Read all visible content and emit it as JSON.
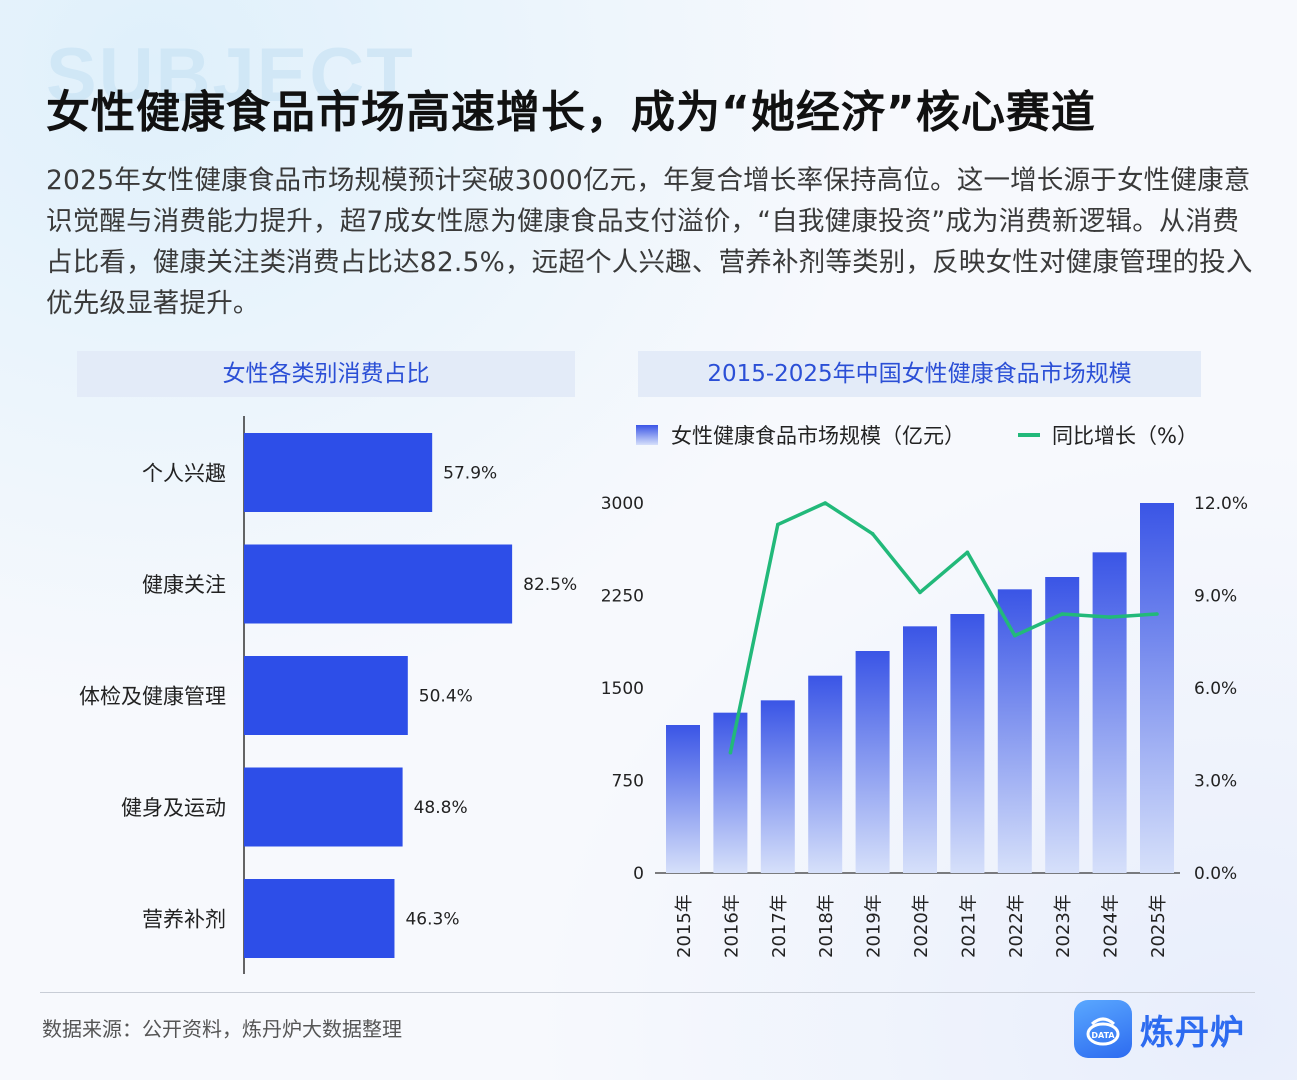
{
  "watermark": "SUBJECT",
  "title": "女性健康食品市场高速增长，成为“她经济”核心赛道",
  "intro": "2025年女性健康食品市场规模预计突破3000亿元，年复合增长率保持高位。这一增长源于女性健康意识觉醒与消费能力提升，超7成女性愿为健康食品支付溢价，“自我健康投资”成为消费新逻辑。从消费占比看，健康关注类消费占比达82.5%，远超个人兴趣、营养补剂等类别，反映女性对健康管理的投入优先级显著提升。",
  "colors": {
    "bar": "#2d4ee8",
    "bar_gradient_top": "#3a55e6",
    "bar_gradient_bottom": "#d6e0fa",
    "line": "#22b97a",
    "header_bg": "#e3ebf8",
    "header_text": "#2b4fd6"
  },
  "chart_data": [
    {
      "type": "bar",
      "orientation": "horizontal",
      "title": "女性各类别消费占比",
      "categories": [
        "个人兴趣",
        "健康关注",
        "体检及健康管理",
        "健身及运动",
        "营养补剂"
      ],
      "values": [
        57.9,
        82.5,
        50.4,
        48.8,
        46.3
      ],
      "value_labels": [
        "57.9%",
        "82.5%",
        "50.4%",
        "48.8%",
        "46.3%"
      ],
      "unit": "%"
    },
    {
      "type": "bar+line",
      "title": "2015-2025年中国女性健康食品市场规模",
      "categories": [
        "2015年",
        "2016年",
        "2017年",
        "2018年",
        "2019年",
        "2020年",
        "2021年",
        "2022年",
        "2023年",
        "2024年",
        "2025年"
      ],
      "series": [
        {
          "name": "女性健康食品市场规模（亿元）",
          "type": "bar",
          "axis": "left",
          "values": [
            1200,
            1300,
            1400,
            1600,
            1800,
            2000,
            2100,
            2300,
            2400,
            2600,
            3000
          ]
        },
        {
          "name": "同比增长（%）",
          "type": "line",
          "axis": "right",
          "values": [
            null,
            3.9,
            11.3,
            12.0,
            11.0,
            9.1,
            10.4,
            7.7,
            8.4,
            8.3,
            8.4
          ]
        }
      ],
      "y_left": {
        "min": 0,
        "max": 3000,
        "ticks": [
          "0",
          "750",
          "1500",
          "2250",
          "3000"
        ]
      },
      "y_right": {
        "min": 0,
        "max": 12,
        "ticks": [
          "0.0%",
          "3.0%",
          "6.0%",
          "9.0%",
          "12.0%"
        ]
      },
      "legend_position": "top"
    }
  ],
  "footer": {
    "source": "数据来源：公开资料，炼丹炉大数据整理",
    "brand": "炼丹炉",
    "logo_text": "DATA"
  }
}
